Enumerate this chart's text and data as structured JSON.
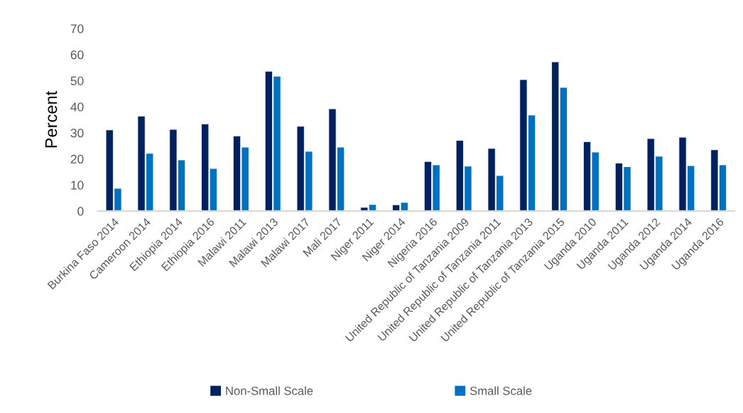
{
  "chart_data": {
    "type": "bar",
    "ylabel": "Percent",
    "categories": [
      "Burkina Faso 2014",
      "Cameroon 2014",
      "Ethiopia 2014",
      "Ethiopia 2016",
      "Malawi 2011",
      "Malawi 2013",
      "Malawi 2017",
      "Mali 2017",
      "Niger 2011",
      "Niger 2014",
      "Nigeria 2016",
      "United Republic of Tanzania 2009",
      "United Republic of Tanzania 2011",
      "United Republic of Tanzania 2013",
      "United Republic of Tanzania 2015",
      "Uganda 2010",
      "Uganda 2011",
      "Uganda 2012",
      "Uganda 2014",
      "Uganda 2016"
    ],
    "series": [
      {
        "name": "Non-Small Scale",
        "color": "#002060",
        "values": [
          31.1,
          36.4,
          31.3,
          33.4,
          28.8,
          53.6,
          32.5,
          39.2,
          1.4,
          2.4,
          19.0,
          27.1,
          24.0,
          50.4,
          57.2,
          26.6,
          18.4,
          27.8,
          28.3,
          23.5
        ]
      },
      {
        "name": "Small Scale",
        "color": "#0070c0",
        "values": [
          8.7,
          22.1,
          19.6,
          16.3,
          24.5,
          51.7,
          22.9,
          24.5,
          2.5,
          3.3,
          17.7,
          17.2,
          13.6,
          36.8,
          47.4,
          22.6,
          17.0,
          21.0,
          17.4,
          17.7
        ]
      }
    ],
    "ylim": [
      0,
      70
    ],
    "yticks": [
      0,
      10,
      20,
      30,
      40,
      50,
      60,
      70
    ],
    "grid": false,
    "legend": "bottom"
  }
}
